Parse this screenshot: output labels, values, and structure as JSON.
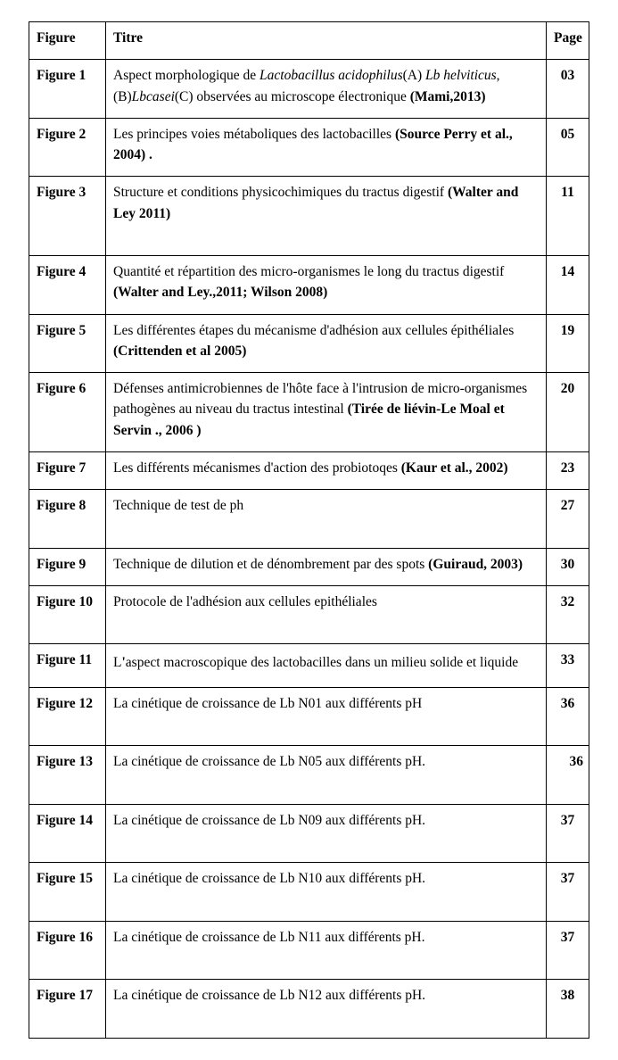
{
  "header": {
    "figure": "Figure",
    "titre": "Titre",
    "page": "Page"
  },
  "rows": [
    {
      "fig": "Figure 1",
      "page": "03"
    },
    {
      "fig": "Figure 2",
      "page": "05"
    },
    {
      "fig": "Figure 3",
      "page": "11"
    },
    {
      "fig": "Figure 4",
      "page": "14"
    },
    {
      "fig": "Figure 5",
      "page": "19"
    },
    {
      "fig": "Figure 6",
      "page": "20"
    },
    {
      "fig": "Figure 7",
      "page": "23"
    },
    {
      "fig": "Figure 8",
      "page": "27"
    },
    {
      "fig": "Figure 9",
      "page": "30"
    },
    {
      "fig": "Figure 10",
      "page": "32"
    },
    {
      "fig": "Figure 11",
      "page": "33"
    },
    {
      "fig": "Figure 12",
      "page": "36"
    },
    {
      "fig": "Figure 13",
      "page": "  36",
      "right": true
    },
    {
      "fig": "Figure 14",
      "page": "37"
    },
    {
      "fig": "Figure 15",
      "page": "37"
    },
    {
      "fig": "Figure 16",
      "page": "37"
    },
    {
      "fig": "Figure 17",
      "page": "38"
    }
  ],
  "titles": {
    "r1_p1": "Aspect morphologique de ",
    "r1_it1": "Lactobacillus acidophilus",
    "r1_p2": "(A) ",
    "r1_it2": "Lb helviticus",
    "r1_p3": ", (B)",
    "r1_it3": "Lbcasei",
    "r1_p4": "(C) observées au microscope électronique ",
    "r1_b": "(Mami,2013)",
    "r2_p1": "Les principes voies métaboliques des lactobacilles ",
    "r2_b": "(Source Perry et al., 2004) .",
    "r3_p1": "Structure et conditions physicochimiques du tractus digestif ",
    "r3_b": "(Walter and Ley 2011)",
    "r4_p1": "Quantité et répartition des micro-organismes le long du tractus digestif ",
    "r4_b": "(Walter and Ley.,2011; Wilson 2008)",
    "r5_p1": "Les différentes étapes du mécanisme d'adhésion aux cellules épithéliales ",
    "r5_b": "(Crittenden et al 2005)",
    "r6_p1": "Défenses antimicrobiennes de l'hôte face à l'intrusion de micro-organismes pathogènes au niveau du tractus intestinal ",
    "r6_b": "(Tirée de liévin-Le Moal et Servin ., 2006 )",
    "r7_p1": "Les différents mécanismes d'action des probiotoqes ",
    "r7_b": "(Kaur et al., 2002)",
    "r8_p1": "Technique de test de ph",
    "r9_p1": "Technique de dilution et de dénombrement par des spots ",
    "r9_b": "(Guiraud, 2003)",
    "r10_p1": " Protocole de l'adhésion aux cellules epithéliales",
    "r11_p1": " L",
    "r11_b1": "'",
    "r11_p2": "aspect macroscopique des lactobacilles dans un milieu solide et liquide",
    "r12_p1": " La cinétique de croissance de Lb N01 aux différents pH",
    "r13_p1": "La cinétique de croissance de Lb N05 aux différents pH.",
    "r14_p1": "La cinétique de croissance de Lb N09 aux différents pH.",
    "r15_p1": "La cinétique de croissance de Lb N10 aux différents pH.",
    "r16_p1": "La cinétique de croissance de Lb N11 aux différents pH.",
    "r17_p1": "La cinétique de croissance de Lb N12 aux différents pH."
  }
}
